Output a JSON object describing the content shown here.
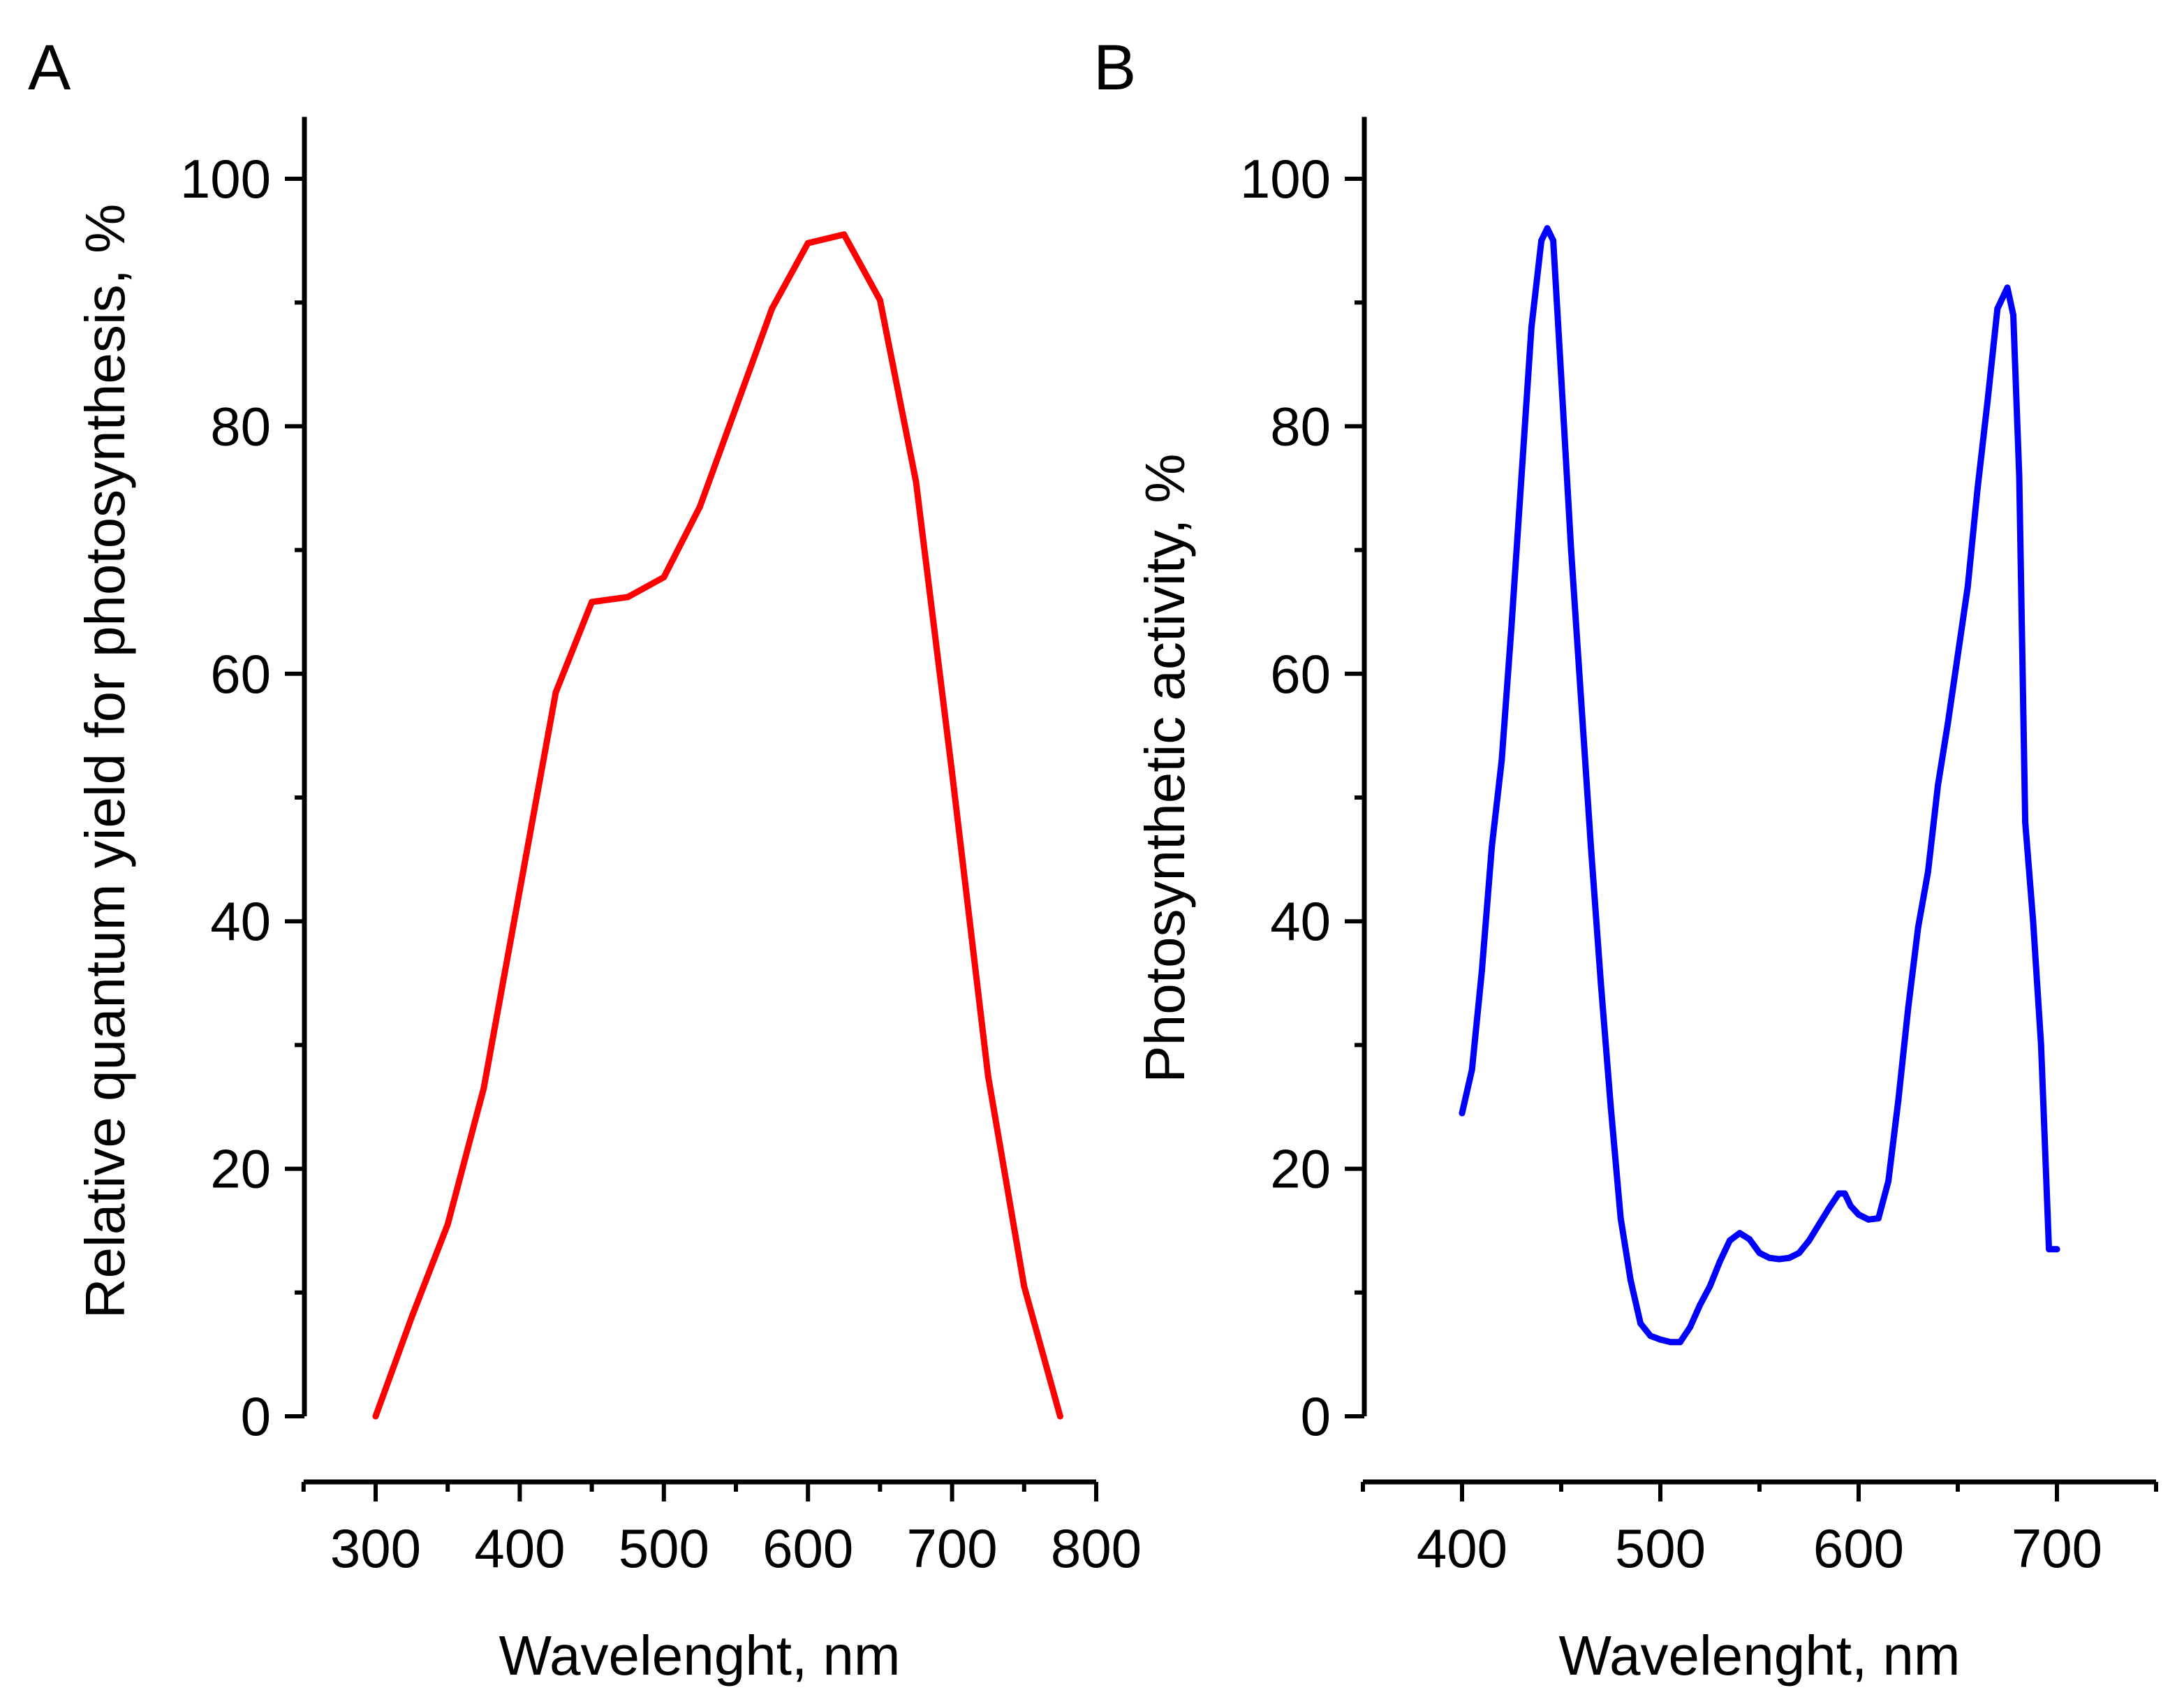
{
  "chart_data": [
    {
      "type": "line",
      "panel_label": "A",
      "xlabel": "Wavelenght, nm",
      "ylabel": "Relative quantum yield for photosynthesis, %",
      "xlim": [
        250,
        800
      ],
      "ylim": [
        0,
        105
      ],
      "x_ticks": [
        300,
        400,
        500,
        600,
        700,
        800
      ],
      "y_ticks": [
        0,
        20,
        40,
        60,
        80,
        100
      ],
      "x_minor_step": 50,
      "y_minor_step": 10,
      "grid": false,
      "series": [
        {
          "name": "Relative quantum yield",
          "color": "#ff0000",
          "x": [
            300,
            325,
            350,
            375,
            400,
            425,
            450,
            475,
            500,
            525,
            550,
            575,
            600,
            625,
            650,
            675,
            700,
            725,
            750,
            775
          ],
          "y": [
            0,
            8,
            15.5,
            26.5,
            42.5,
            58.5,
            65.8,
            66.2,
            67.8,
            73.5,
            81.5,
            89.5,
            94.8,
            95.5,
            90.2,
            75.5,
            52,
            27.5,
            10.5,
            0
          ]
        }
      ]
    },
    {
      "type": "line",
      "panel_label": "B",
      "xlabel": "Wavelenght, nm",
      "ylabel": "Photosynthetic activity, %",
      "xlim": [
        350,
        750
      ],
      "ylim": [
        0,
        105
      ],
      "x_ticks": [
        400,
        500,
        600,
        700
      ],
      "y_ticks": [
        0,
        20,
        40,
        60,
        80,
        100
      ],
      "x_minor_step": 50,
      "y_minor_step": 10,
      "grid": false,
      "series": [
        {
          "name": "Photosynthetic activity",
          "color": "#0000ff",
          "x": [
            400,
            405,
            410,
            415,
            420,
            425,
            430,
            435,
            440,
            443,
            446,
            450,
            455,
            460,
            465,
            470,
            475,
            480,
            485,
            490,
            495,
            500,
            505,
            510,
            515,
            520,
            525,
            530,
            535,
            540,
            545,
            550,
            555,
            560,
            565,
            570,
            575,
            580,
            585,
            590,
            593,
            596,
            600,
            605,
            610,
            615,
            620,
            625,
            630,
            635,
            640,
            645,
            650,
            655,
            660,
            665,
            670,
            675,
            678,
            681,
            684,
            688,
            692,
            696,
            700
          ],
          "y": [
            24.5,
            28,
            36,
            46,
            53,
            64,
            76,
            88,
            95,
            96,
            95,
            84,
            70,
            58,
            46,
            35,
            25,
            16,
            11,
            7.5,
            6.5,
            6.2,
            6,
            6,
            7.2,
            9,
            10.5,
            12.5,
            14.2,
            14.8,
            14.3,
            13.2,
            12.8,
            12.7,
            12.8,
            13.2,
            14.2,
            15.5,
            16.8,
            18,
            18,
            17,
            16.3,
            15.9,
            16,
            19,
            25.5,
            33,
            39.5,
            44,
            51,
            56,
            61.5,
            67,
            75,
            82,
            89.5,
            91.2,
            89,
            76,
            48,
            40,
            30,
            13.5,
            13.5
          ]
        }
      ]
    }
  ]
}
